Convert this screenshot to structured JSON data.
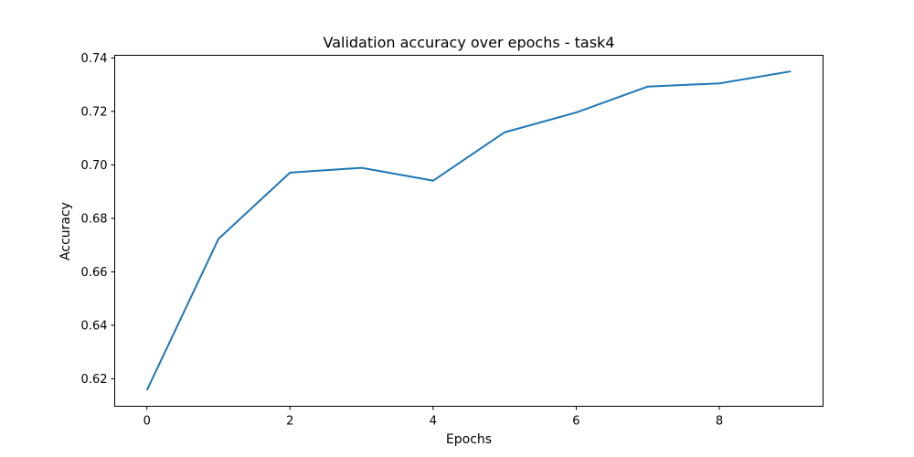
{
  "chart_data": {
    "type": "line",
    "title": "Validation accuracy over epochs - task4",
    "xlabel": "Epochs",
    "ylabel": "Accuracy",
    "x": [
      0,
      1,
      2,
      3,
      4,
      5,
      6,
      7,
      8,
      9
    ],
    "series": [
      {
        "values": [
          0.6157,
          0.6723,
          0.6971,
          0.6989,
          0.6941,
          0.7122,
          0.7196,
          0.7293,
          0.7305,
          0.735
        ],
        "color": "#1f77b4"
      }
    ],
    "xlim": [
      -0.45,
      9.45
    ],
    "ylim": [
      0.6097,
      0.741
    ],
    "xticks": [
      0,
      2,
      4,
      6,
      8
    ],
    "xtick_labels": [
      "0",
      "2",
      "4",
      "6",
      "8"
    ],
    "yticks": [
      0.62,
      0.64,
      0.66,
      0.68,
      0.7,
      0.72,
      0.74
    ],
    "ytick_labels": [
      "0.62",
      "0.64",
      "0.66",
      "0.68",
      "0.70",
      "0.72",
      "0.74"
    ],
    "grid": false,
    "legend": "none"
  }
}
